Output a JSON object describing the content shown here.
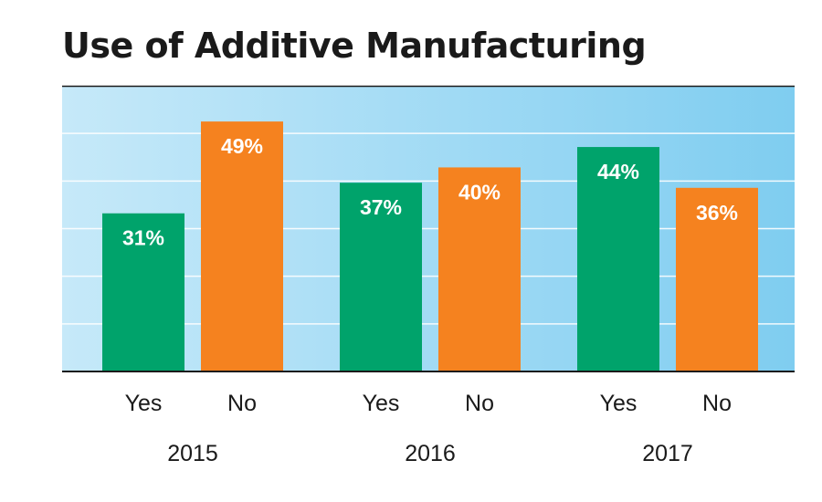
{
  "chart_data": {
    "type": "bar",
    "title": "Use of Additive Manufacturing",
    "groups": [
      "2015",
      "2016",
      "2017"
    ],
    "series": [
      {
        "name": "Yes",
        "values": [
          31,
          37,
          44
        ],
        "color": "#00a36b"
      },
      {
        "name": "No",
        "values": [
          49,
          40,
          36
        ],
        "color": "#f5821f"
      }
    ],
    "value_suffix": "%",
    "ylim": [
      0,
      56
    ],
    "grid": true,
    "background_gradient": [
      "#c6e9f9",
      "#7fcdf0"
    ]
  }
}
